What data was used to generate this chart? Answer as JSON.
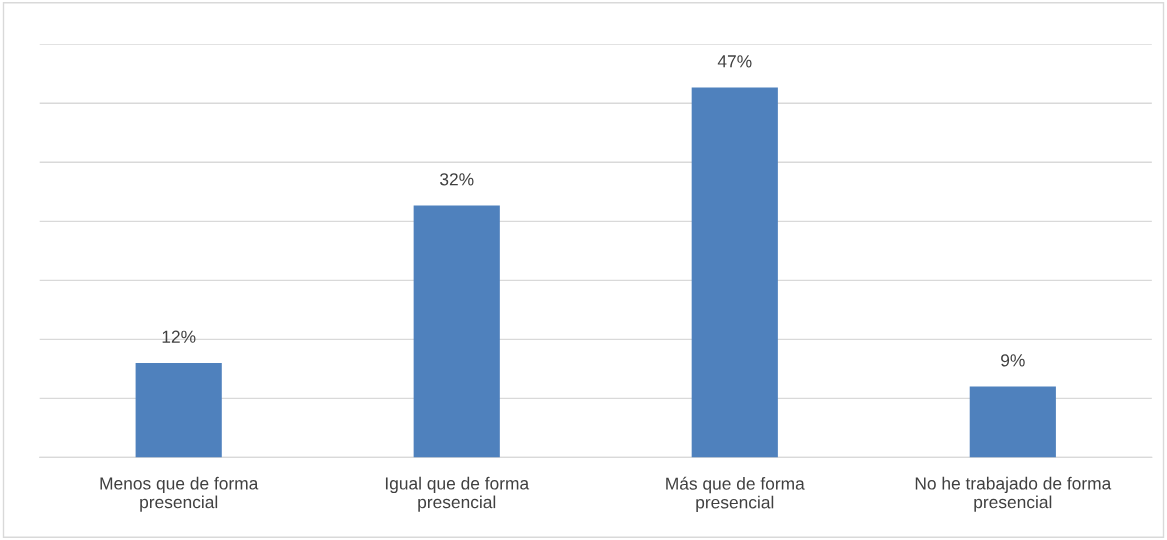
{
  "chart_data": {
    "type": "bar",
    "categories": [
      "Menos que de forma\npresencial",
      "Igual que de forma\npresencial",
      "Más que de forma\npresencial",
      "No he trabajado de forma\npresencial"
    ],
    "values": [
      12,
      32,
      47,
      9
    ],
    "value_labels": [
      "12%",
      "32%",
      "47%",
      "9%"
    ],
    "color": "#4f81bd",
    "ylim": [
      0,
      52.5
    ],
    "yticks": [
      {
        "value": 0,
        "label": null
      },
      {
        "value": 7.5,
        "label": null
      },
      {
        "value": 15,
        "label": null
      },
      {
        "value": 22.5,
        "label": null
      },
      {
        "value": 30,
        "label": null
      },
      {
        "value": 37.5,
        "label": null
      },
      {
        "value": 45,
        "label": null
      },
      {
        "value": 52.5,
        "label": null
      }
    ],
    "tick_labels": "x",
    "grid": "y"
  }
}
